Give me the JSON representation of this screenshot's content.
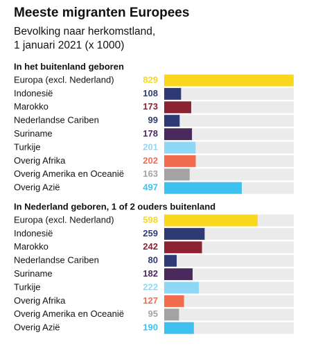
{
  "title": "Meeste migranten Europees",
  "subtitle": [
    "Bevolking naar herkomstland,",
    "1 januari 2021 (x 1000)"
  ],
  "chart_data": [
    {
      "type": "bar",
      "orientation": "horizontal",
      "title": "In het buitenland geboren",
      "categories": [
        "Europa (excl. Nederland)",
        "Indonesië",
        "Marokko",
        "Nederlandse Cariben",
        "Suriname",
        "Turkije",
        "Overig Afrika",
        "Overig Amerika en Oceanië",
        "Overig Azië"
      ],
      "values": [
        829,
        108,
        173,
        99,
        178,
        201,
        202,
        163,
        497
      ],
      "colors": [
        "#f9d71c",
        "#2e3a74",
        "#8b2332",
        "#2e3a74",
        "#4a2a5c",
        "#8fd8f5",
        "#f26c4f",
        "#a3a3a3",
        "#3fc1ef"
      ],
      "xlim": [
        0,
        830
      ]
    },
    {
      "type": "bar",
      "orientation": "horizontal",
      "title": "In Nederland geboren, 1 of 2 ouders buitenland",
      "categories": [
        "Europa (excl. Nederland)",
        "Indonesië",
        "Marokko",
        "Nederlandse Cariben",
        "Suriname",
        "Turkije",
        "Overig Afrika",
        "Overig Amerika en Oceanië",
        "Overig Azië"
      ],
      "values": [
        598,
        259,
        242,
        80,
        182,
        222,
        127,
        95,
        190
      ],
      "colors": [
        "#f9d71c",
        "#2e3a74",
        "#8b2332",
        "#2e3a74",
        "#4a2a5c",
        "#8fd8f5",
        "#f26c4f",
        "#a3a3a3",
        "#3fc1ef"
      ],
      "xlim": [
        0,
        830
      ]
    }
  ]
}
